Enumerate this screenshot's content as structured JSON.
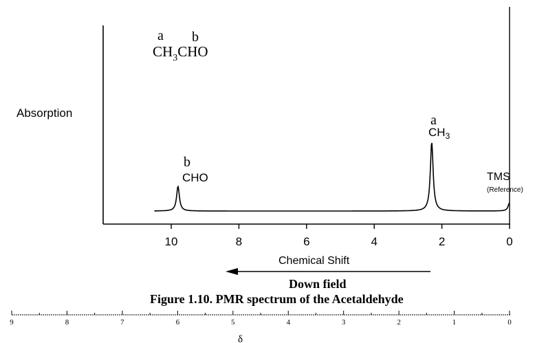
{
  "chart_data": [
    {
      "type": "line",
      "title": "",
      "xlabel": "Chemical Shift",
      "ylabel": "Absorption",
      "xlim": [
        12,
        0
      ],
      "x_reversed": true,
      "x_ticks": [
        10,
        8,
        6,
        4,
        2,
        0
      ],
      "x_tick_labels": [
        "10",
        "8",
        "6",
        "4",
        "2",
        "0"
      ],
      "grid": false,
      "peaks": [
        {
          "shift": 9.8,
          "relative_height": 0.36,
          "label_letter": "b",
          "label_group": "CHO"
        },
        {
          "shift": 2.3,
          "relative_height": 1.0,
          "label_letter": "a",
          "label_group": "CH3"
        },
        {
          "shift": 0.0,
          "relative_height": 0.12,
          "label_letter": "",
          "label_group": "TMS",
          "label_note": "(Reference)"
        }
      ],
      "baseline_start": 10.5,
      "baseline_end": 0.0
    },
    {
      "type": "scale",
      "xlabel": "δ",
      "xlim": [
        9,
        0
      ],
      "x_reversed": true,
      "x_ticks": [
        9,
        8,
        7,
        6,
        5,
        4,
        3,
        2,
        1,
        0
      ],
      "x_tick_labels": [
        "9",
        "8",
        "7",
        "6",
        "5",
        "4",
        "3",
        "2",
        "1",
        "0"
      ]
    }
  ],
  "molecule": {
    "letter_a": "a",
    "letter_b": "b",
    "formula_part1": "CH",
    "formula_sub": "3",
    "formula_part2": "CHO"
  },
  "peak_labels": {
    "cho_letter": "b",
    "cho_group": "CHO",
    "ch3_letter": "a",
    "ch3_group": "CH",
    "ch3_sub": "3",
    "tms": "TMS",
    "tms_note": "(Reference)"
  },
  "arrow_label": "Down field",
  "caption": "Figure 1.10. PMR spectrum of the Acetaldehyde"
}
